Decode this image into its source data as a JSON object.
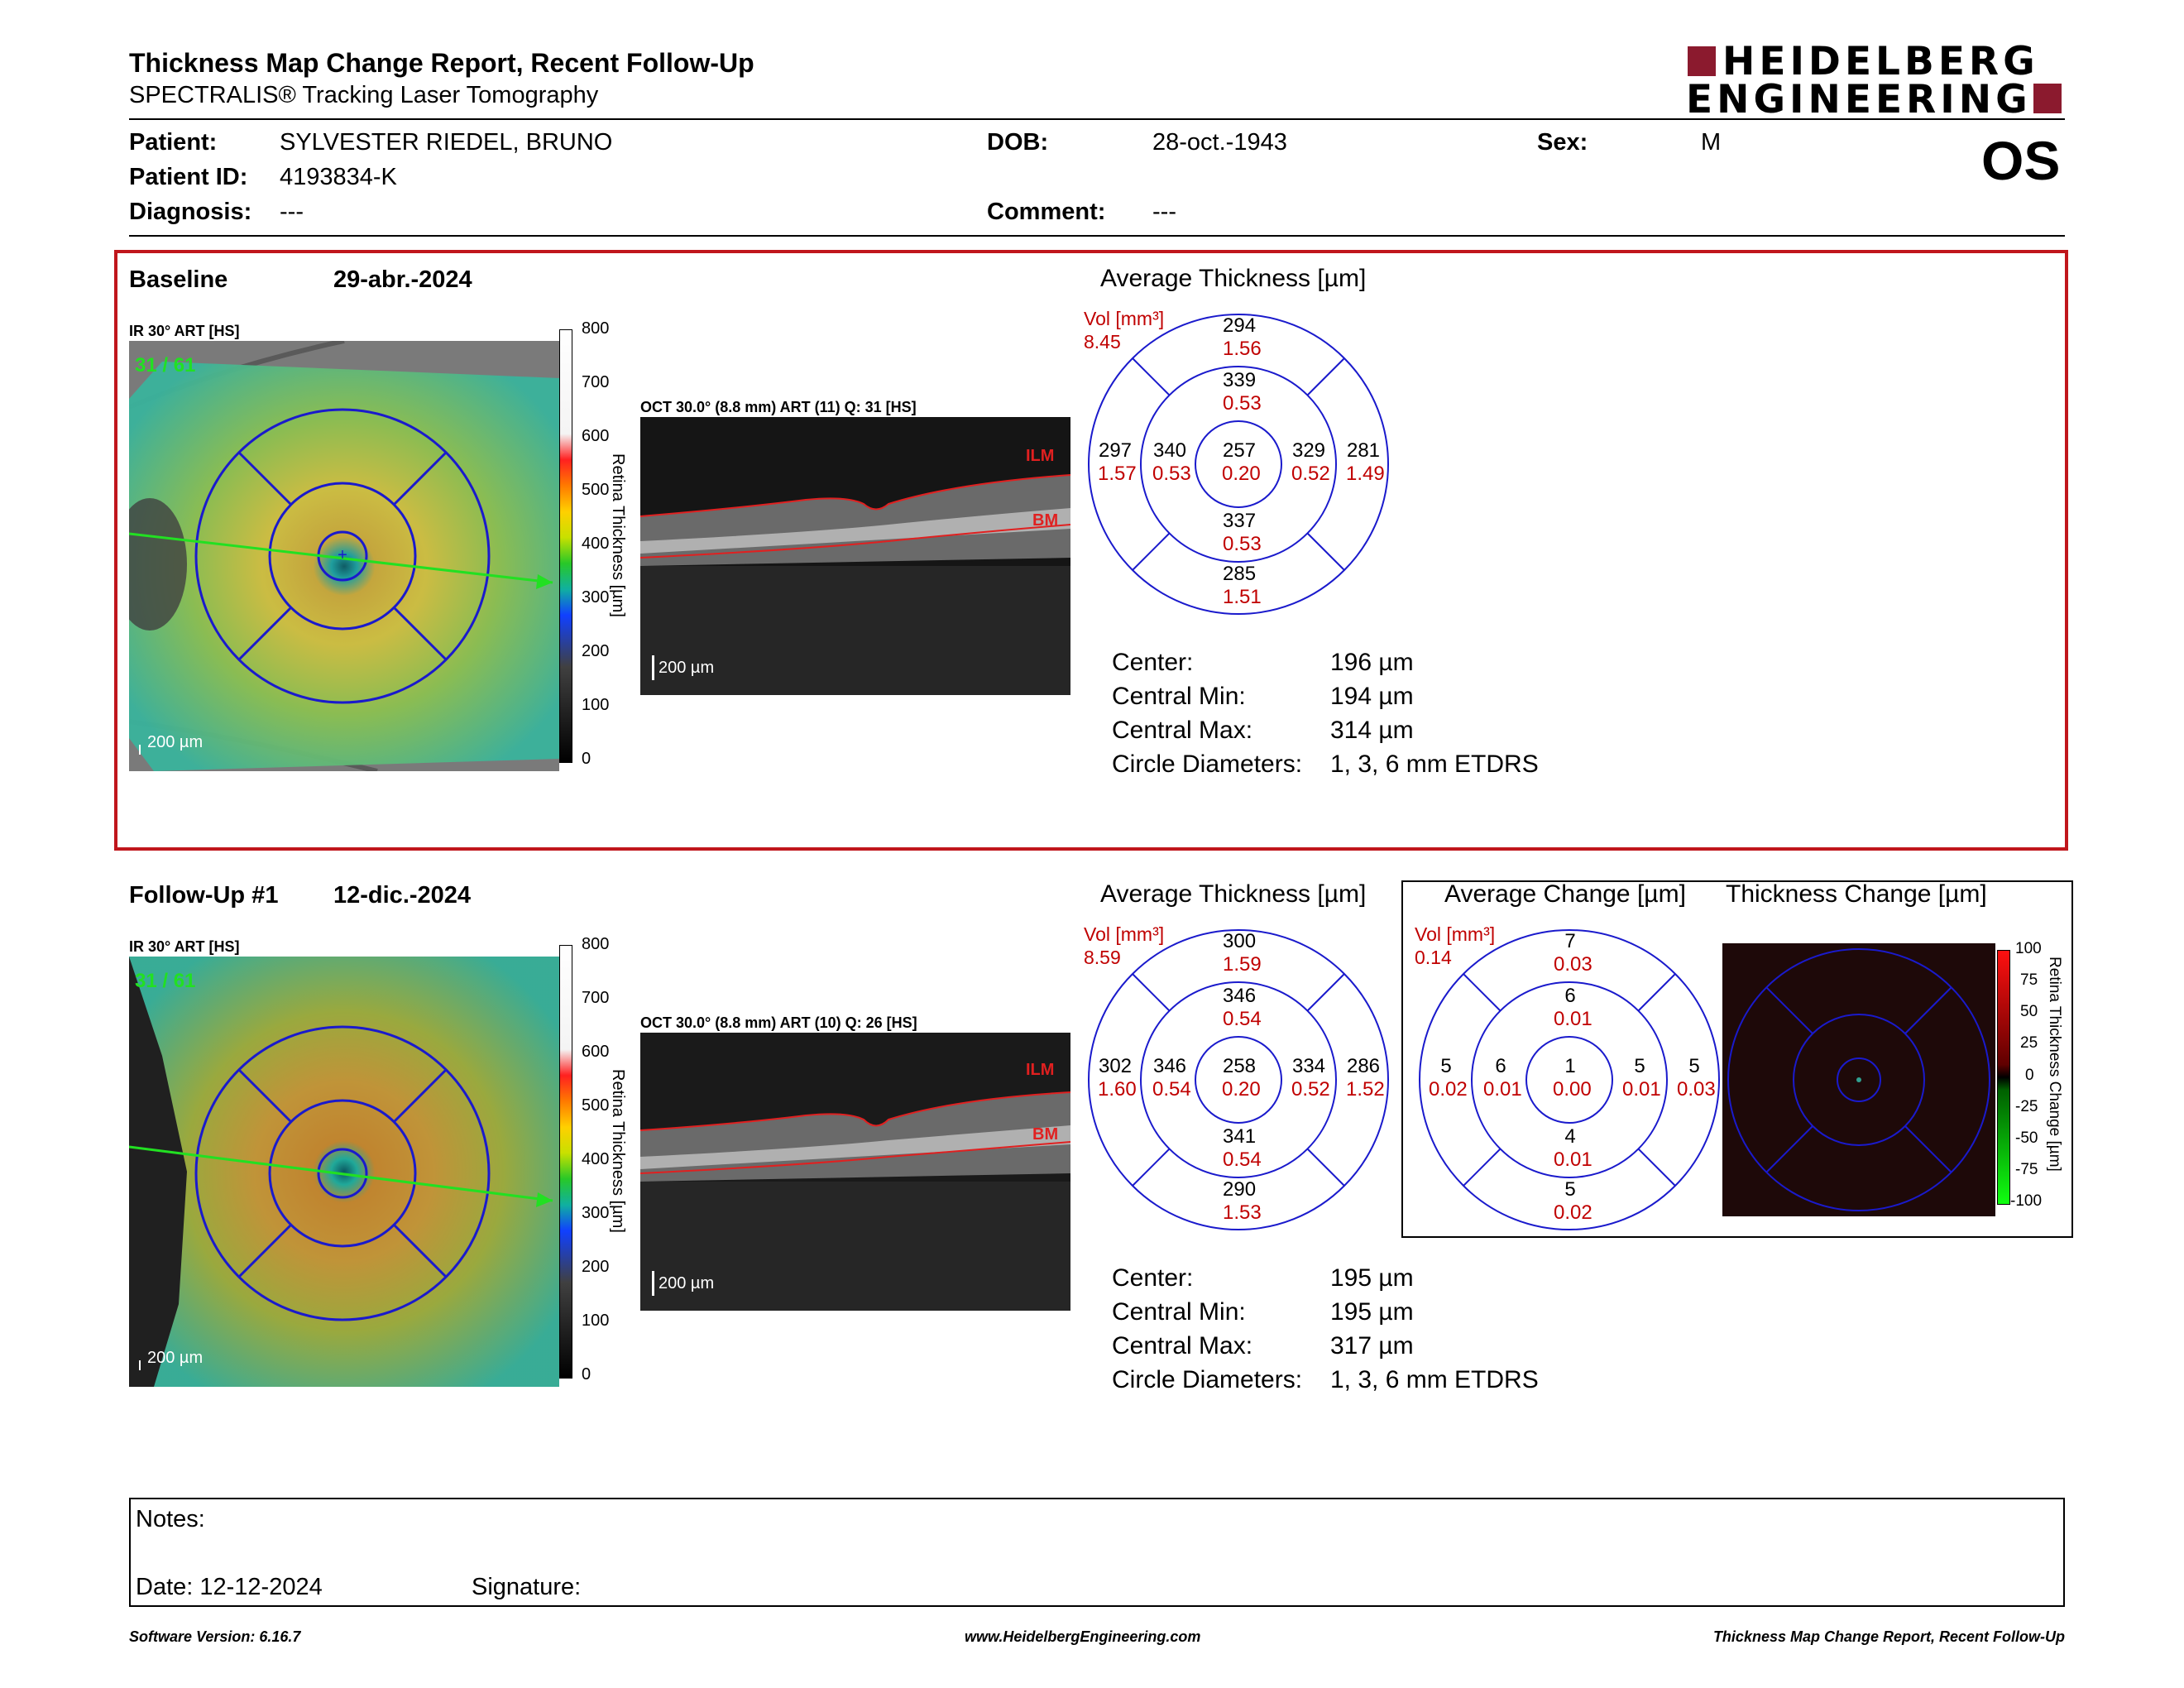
{
  "header": {
    "title": "Thickness Map Change Report, Recent Follow-Up",
    "subtitle": "SPECTRALIS® Tracking Laser Tomography",
    "logo_line1": "HEIDELBERG",
    "logo_line2": "ENGINEERING",
    "eye": "OS"
  },
  "patient": {
    "patient_label": "Patient:",
    "patient_value": "SYLVESTER RIEDEL, BRUNO",
    "id_label": "Patient ID:",
    "id_value": "4193834-K",
    "diagnosis_label": "Diagnosis:",
    "diagnosis_value": "---",
    "dob_label": "DOB:",
    "dob_value": "28-oct.-1943",
    "comment_label": "Comment:",
    "comment_value": "---",
    "sex_label": "Sex:",
    "sex_value": "M"
  },
  "baseline": {
    "label": "Baseline",
    "date": "29-abr.-2024",
    "ir_title": "IR 30° ART [HS]",
    "ir_count": "31 / 61",
    "scale": "200 µm",
    "colorbar_ticks": [
      "800",
      "700",
      "600",
      "500",
      "400",
      "300",
      "200",
      "100",
      "0"
    ],
    "colorbar_label": "Retina Thickness [µm]",
    "oct_title": "OCT 30.0° (8.8 mm) ART (11) Q: 31 [HS]",
    "ilm": "ILM",
    "bm": "BM",
    "avg_title": "Average Thickness [µm]",
    "vol_label": "Vol [mm³]",
    "vol_value": "8.45",
    "etdrs": {
      "center": [
        "257",
        "0.20"
      ],
      "inner_sup": [
        "339",
        "0.53"
      ],
      "inner_inf": [
        "337",
        "0.53"
      ],
      "inner_left": [
        "340",
        "0.53"
      ],
      "inner_right": [
        "329",
        "0.52"
      ],
      "outer_sup": [
        "294",
        "1.56"
      ],
      "outer_inf": [
        "285",
        "1.51"
      ],
      "outer_left": [
        "297",
        "1.57"
      ],
      "outer_right": [
        "281",
        "1.49"
      ]
    },
    "stats": [
      {
        "label": "Center:",
        "value": "196 µm"
      },
      {
        "label": "Central Min:",
        "value": "194 µm"
      },
      {
        "label": "Central Max:",
        "value": "314 µm"
      },
      {
        "label": "Circle Diameters:",
        "value": "1, 3, 6 mm ETDRS"
      }
    ]
  },
  "followup": {
    "label": "Follow-Up #1",
    "date": "12-dic.-2024",
    "ir_title": "IR 30° ART [HS]",
    "ir_count": "31 / 61",
    "scale": "200 µm",
    "colorbar_ticks": [
      "800",
      "700",
      "600",
      "500",
      "400",
      "300",
      "200",
      "100",
      "0"
    ],
    "colorbar_label": "Retina Thickness [µm]",
    "oct_title": "OCT 30.0° (8.8 mm) ART (10) Q: 26 [HS]",
    "ilm": "ILM",
    "bm": "BM",
    "avg_title": "Average Thickness [µm]",
    "vol_label": "Vol [mm³]",
    "vol_value": "8.59",
    "etdrs": {
      "center": [
        "258",
        "0.20"
      ],
      "inner_sup": [
        "346",
        "0.54"
      ],
      "inner_inf": [
        "341",
        "0.54"
      ],
      "inner_left": [
        "346",
        "0.54"
      ],
      "inner_right": [
        "334",
        "0.52"
      ],
      "outer_sup": [
        "300",
        "1.59"
      ],
      "outer_inf": [
        "290",
        "1.53"
      ],
      "outer_left": [
        "302",
        "1.60"
      ],
      "outer_right": [
        "286",
        "1.52"
      ]
    },
    "stats": [
      {
        "label": "Center:",
        "value": "195 µm"
      },
      {
        "label": "Central Min:",
        "value": "195 µm"
      },
      {
        "label": "Central Max:",
        "value": "317 µm"
      },
      {
        "label": "Circle Diameters:",
        "value": "1, 3, 6 mm ETDRS"
      }
    ],
    "change_title": "Average Change [µm]",
    "change_vol_label": "Vol [mm³]",
    "change_vol_value": "0.14",
    "change_etdrs": {
      "center": [
        "1",
        "0.00"
      ],
      "inner_sup": [
        "6",
        "0.01"
      ],
      "inner_inf": [
        "4",
        "0.01"
      ],
      "inner_left": [
        "6",
        "0.01"
      ],
      "inner_right": [
        "5",
        "0.01"
      ],
      "outer_sup": [
        "7",
        "0.03"
      ],
      "outer_inf": [
        "5",
        "0.02"
      ],
      "outer_left": [
        "5",
        "0.02"
      ],
      "outer_right": [
        "5",
        "0.03"
      ]
    },
    "thickness_change_title": "Thickness Change [µm]",
    "change_ticks": [
      "100",
      "75",
      "50",
      "25",
      "0",
      "-25",
      "-50",
      "-75",
      "-100"
    ],
    "change_bar_label": "Retina Thickness Change [µm]"
  },
  "notes": {
    "notes_label": "Notes:",
    "date_label": "Date: 12-12-2024",
    "signature_label": "Signature:"
  },
  "footer": {
    "left": "Software Version: 6.16.7",
    "center": "www.HeidelbergEngineering.com",
    "right": "Thickness Map Change Report, Recent Follow-Up"
  },
  "colors": {
    "brand": "#8b1a2e",
    "circle": "#1a1acc",
    "highlight_border": "#c0161c",
    "volume_text": "#c00000"
  }
}
